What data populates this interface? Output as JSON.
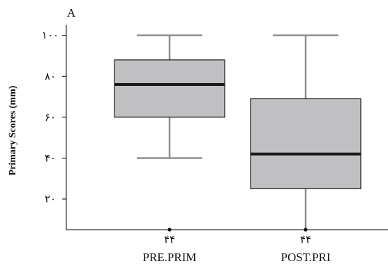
{
  "chart_data": {
    "type": "box",
    "panel_label": "A",
    "ylabel": "Primary Scores (mm)",
    "xlabel": "",
    "ylim": [
      5,
      105
    ],
    "yticks": [
      20,
      40,
      60,
      80,
      100
    ],
    "ytick_labels": [
      "٢٠",
      "۴٠",
      "۶٠",
      "٨٠",
      "١٠٠"
    ],
    "categories": [
      "PRE.PRIM",
      "POST.PRI"
    ],
    "counts": [
      "۴۴",
      "۴۴"
    ],
    "boxes": [
      {
        "category": "PRE.PRIM",
        "min": 40,
        "q1": 60,
        "median": 76,
        "q3": 88,
        "max": 100
      },
      {
        "category": "POST.PRI",
        "min": 5,
        "q1": 25,
        "median": 42,
        "q3": 69,
        "max": 100
      }
    ],
    "box_fill": "#c0c0c3",
    "whisker_color": "#8e8e8e",
    "median_color": "#1a1a1a",
    "grid": false
  }
}
